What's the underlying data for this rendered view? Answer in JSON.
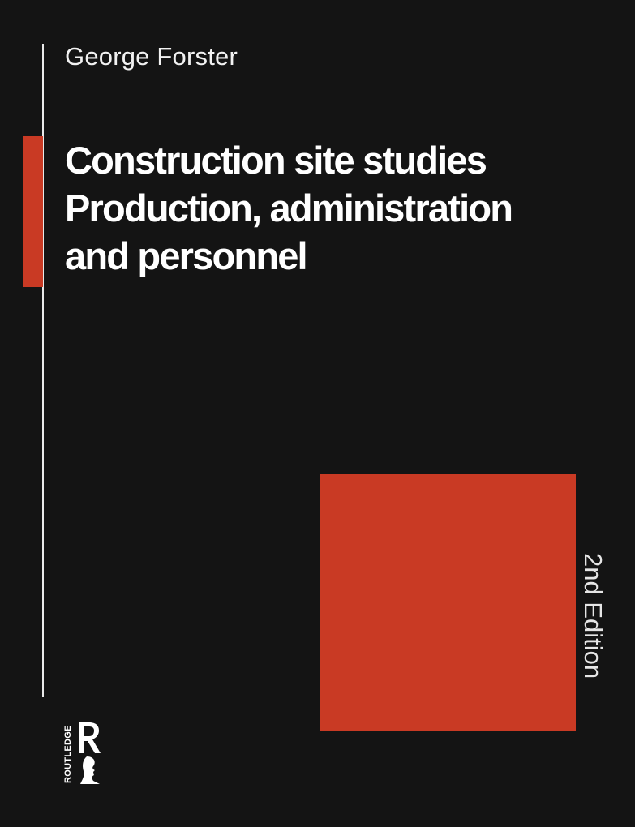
{
  "cover": {
    "author": "George Forster",
    "title_lines": [
      "Construction site studies",
      "Production, administration",
      "and personnel"
    ],
    "edition": "2nd Edition",
    "publisher": "ROUTLEDGE",
    "colors": {
      "background": "#141414",
      "accent": "#c93a24",
      "text": "#ffffff",
      "rule": "#e9e9e9"
    }
  }
}
